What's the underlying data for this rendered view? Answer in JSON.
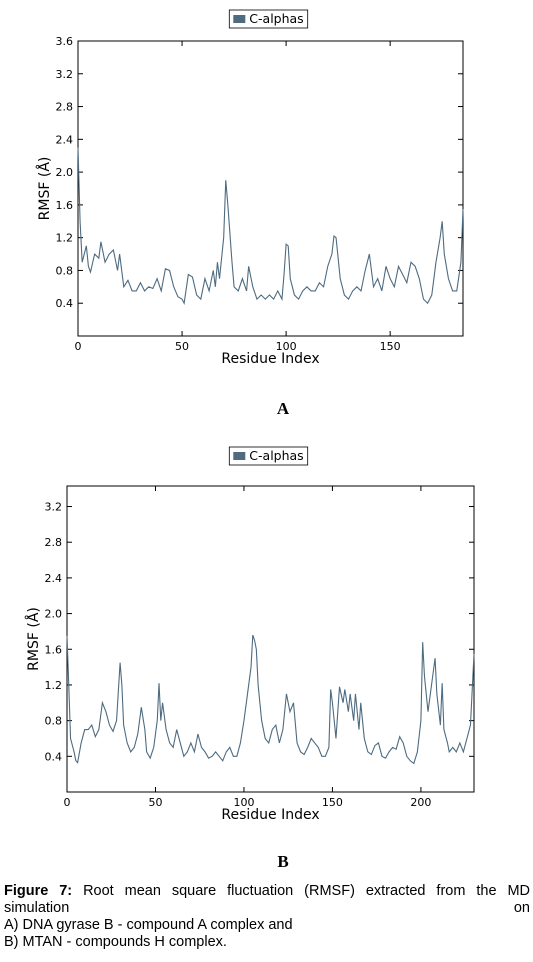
{
  "chart_data": [
    {
      "type": "line",
      "annotation": "A",
      "xlabel": "Residue Index",
      "ylabel": "RMSF (Å)",
      "xlim": [
        0,
        185
      ],
      "ylim": [
        0,
        3.6
      ],
      "xticks": [
        0,
        50,
        100,
        150
      ],
      "yticks": [
        0.4,
        0.8,
        1.2,
        1.6,
        {
          "value": 2,
          "label": "2.0"
        },
        2.4,
        2.8,
        3.2,
        3.6
      ],
      "legend": "top",
      "x": [
        0,
        1,
        2,
        4,
        5,
        6,
        8,
        10,
        11,
        13,
        15,
        17,
        19,
        20,
        22,
        24,
        26,
        28,
        30,
        32,
        34,
        36,
        38,
        40,
        42,
        44,
        46,
        48,
        50,
        51,
        53,
        55,
        57,
        59,
        61,
        63,
        65,
        66,
        67,
        68,
        70,
        71,
        72,
        74,
        75,
        77,
        79,
        81,
        82,
        84,
        86,
        88,
        90,
        92,
        94,
        96,
        98,
        99,
        100,
        101,
        102,
        104,
        106,
        108,
        110,
        112,
        114,
        116,
        118,
        120,
        122,
        123,
        124,
        126,
        128,
        130,
        132,
        134,
        136,
        138,
        140,
        142,
        144,
        146,
        148,
        150,
        152,
        154,
        156,
        158,
        160,
        162,
        164,
        166,
        168,
        170,
        172,
        174,
        175,
        176,
        178,
        180,
        182,
        184,
        185
      ],
      "series": [
        {
          "name": "C-alphas",
          "color": "#4e6b80",
          "values": [
            2.3,
            1.4,
            0.9,
            1.1,
            0.85,
            0.78,
            1.0,
            0.95,
            1.15,
            0.9,
            1.0,
            1.05,
            0.8,
            1.0,
            0.6,
            0.68,
            0.55,
            0.55,
            0.65,
            0.55,
            0.6,
            0.58,
            0.7,
            0.55,
            0.82,
            0.8,
            0.6,
            0.48,
            0.45,
            0.4,
            0.75,
            0.72,
            0.5,
            0.45,
            0.7,
            0.55,
            0.8,
            0.6,
            0.9,
            0.7,
            1.2,
            1.9,
            1.6,
            0.9,
            0.6,
            0.55,
            0.7,
            0.55,
            0.85,
            0.6,
            0.45,
            0.5,
            0.45,
            0.5,
            0.45,
            0.55,
            0.45,
            0.75,
            1.12,
            1.1,
            0.7,
            0.5,
            0.45,
            0.55,
            0.6,
            0.55,
            0.55,
            0.65,
            0.6,
            0.85,
            1.0,
            1.22,
            1.2,
            0.7,
            0.5,
            0.45,
            0.55,
            0.6,
            0.55,
            0.8,
            1.0,
            0.6,
            0.7,
            0.55,
            0.85,
            0.7,
            0.6,
            0.85,
            0.75,
            0.65,
            0.9,
            0.85,
            0.7,
            0.45,
            0.4,
            0.5,
            0.9,
            1.2,
            1.4,
            1.0,
            0.7,
            0.55,
            0.55,
            0.9,
            1.55
          ]
        }
      ]
    },
    {
      "type": "line",
      "annotation": "B",
      "xlabel": "Residue Index",
      "ylabel": "RMSF (Å)",
      "xlim": [
        0,
        230
      ],
      "ylim": [
        0,
        3.43
      ],
      "xticks": [
        0,
        50,
        100,
        150,
        200
      ],
      "yticks": [
        0.4,
        0.8,
        1.2,
        1.6,
        {
          "value": 2,
          "label": "2.0"
        },
        2.4,
        2.8,
        3.2
      ],
      "legend": "top",
      "x": [
        0,
        1,
        2,
        4,
        5,
        6,
        8,
        10,
        12,
        14,
        16,
        18,
        20,
        22,
        24,
        26,
        28,
        30,
        31,
        32,
        34,
        36,
        38,
        40,
        42,
        44,
        45,
        47,
        49,
        51,
        52,
        53,
        54,
        56,
        58,
        60,
        62,
        64,
        66,
        68,
        70,
        72,
        74,
        76,
        78,
        80,
        82,
        84,
        86,
        88,
        90,
        92,
        94,
        96,
        98,
        100,
        102,
        104,
        105,
        106,
        107,
        108,
        110,
        112,
        114,
        116,
        118,
        120,
        122,
        124,
        126,
        128,
        130,
        132,
        134,
        136,
        138,
        140,
        142,
        144,
        146,
        148,
        149,
        150,
        152,
        154,
        156,
        157,
        159,
        160,
        162,
        163,
        165,
        166,
        168,
        170,
        172,
        174,
        176,
        178,
        180,
        182,
        184,
        186,
        188,
        190,
        192,
        194,
        196,
        198,
        200,
        201,
        202,
        204,
        206,
        208,
        209,
        211,
        212,
        213,
        215,
        216,
        218,
        220,
        222,
        224,
        226,
        228,
        230
      ],
      "series": [
        {
          "name": "C-alphas",
          "color": "#4e6b80",
          "values": [
            1.75,
            1.2,
            0.6,
            0.45,
            0.35,
            0.33,
            0.55,
            0.7,
            0.7,
            0.75,
            0.62,
            0.7,
            1.0,
            0.9,
            0.75,
            0.68,
            0.8,
            1.45,
            1.2,
            0.75,
            0.55,
            0.45,
            0.5,
            0.65,
            0.95,
            0.7,
            0.45,
            0.38,
            0.5,
            0.8,
            1.22,
            0.8,
            1.0,
            0.7,
            0.55,
            0.5,
            0.7,
            0.55,
            0.4,
            0.45,
            0.55,
            0.45,
            0.65,
            0.5,
            0.45,
            0.38,
            0.4,
            0.45,
            0.4,
            0.35,
            0.45,
            0.5,
            0.4,
            0.4,
            0.55,
            0.8,
            1.1,
            1.4,
            1.76,
            1.7,
            1.6,
            1.2,
            0.8,
            0.6,
            0.55,
            0.7,
            0.75,
            0.55,
            0.7,
            1.1,
            0.9,
            1.0,
            0.55,
            0.45,
            0.42,
            0.5,
            0.6,
            0.55,
            0.5,
            0.4,
            0.4,
            0.5,
            1.15,
            1.0,
            0.6,
            1.18,
            1.0,
            1.15,
            0.9,
            1.1,
            0.8,
            1.1,
            0.7,
            1.0,
            0.6,
            0.45,
            0.42,
            0.52,
            0.55,
            0.4,
            0.38,
            0.45,
            0.5,
            0.48,
            0.62,
            0.55,
            0.4,
            0.35,
            0.32,
            0.45,
            0.8,
            1.68,
            1.3,
            0.9,
            1.2,
            1.5,
            1.1,
            0.75,
            1.22,
            0.7,
            0.55,
            0.45,
            0.5,
            0.45,
            0.55,
            0.45,
            0.6,
            0.75,
            1.55
          ]
        }
      ]
    }
  ],
  "caption": {
    "label": "Figure 7:",
    "lines": [
      "Root mean square fluctuation (RMSF) extracted from the MD simulation on",
      "A) DNA gyrase B - compound A complex and",
      "B) MTAN - compounds H complex."
    ]
  }
}
